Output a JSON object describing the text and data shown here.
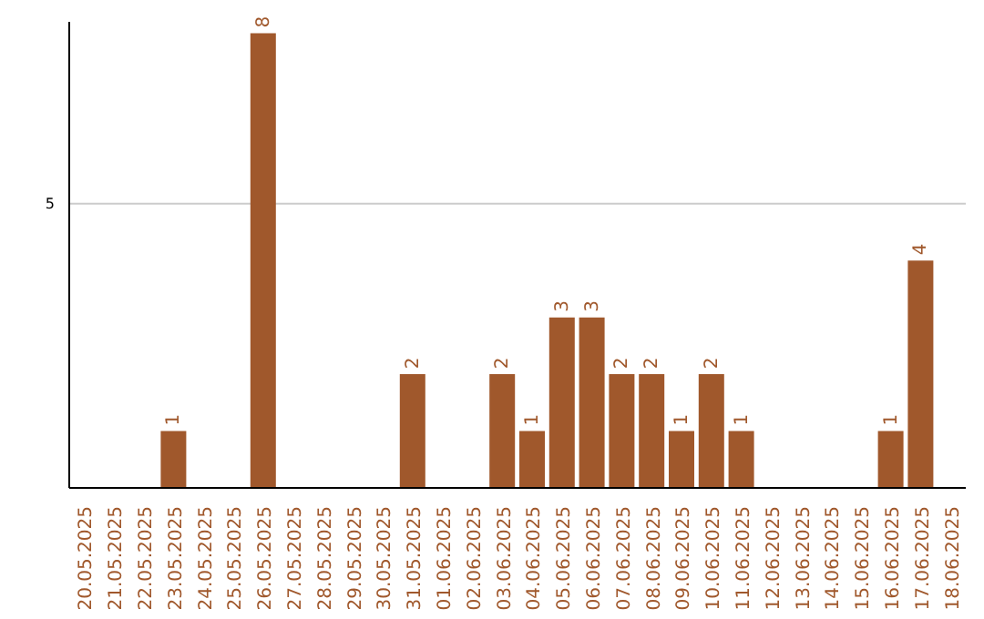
{
  "chart_data": {
    "type": "bar",
    "categories": [
      "20.05.2025",
      "21.05.2025",
      "22.05.2025",
      "23.05.2025",
      "24.05.2025",
      "25.05.2025",
      "26.05.2025",
      "27.05.2025",
      "28.05.2025",
      "29.05.2025",
      "30.05.2025",
      "31.05.2025",
      "01.06.2025",
      "02.06.2025",
      "03.06.2025",
      "04.06.2025",
      "05.06.2025",
      "06.06.2025",
      "07.06.2025",
      "08.06.2025",
      "09.06.2025",
      "10.06.2025",
      "11.06.2025",
      "12.06.2025",
      "13.06.2025",
      "14.06.2025",
      "15.06.2025",
      "16.06.2025",
      "17.06.2025",
      "18.06.2025"
    ],
    "values": [
      0,
      0,
      0,
      1,
      0,
      0,
      8,
      0,
      0,
      0,
      0,
      2,
      0,
      0,
      2,
      1,
      3,
      3,
      2,
      2,
      1,
      2,
      1,
      0,
      0,
      0,
      0,
      1,
      4,
      0
    ],
    "value_labels": [
      null,
      null,
      null,
      "1",
      null,
      null,
      "8",
      null,
      null,
      null,
      null,
      "2",
      null,
      null,
      "2",
      "1",
      "3",
      "3",
      "2",
      "2",
      "1",
      "2",
      "1",
      null,
      null,
      null,
      null,
      "1",
      "4",
      null
    ],
    "color": "#a0582c",
    "ylim": [
      0,
      8.2
    ],
    "yticks": [
      5
    ],
    "grid": "y"
  }
}
